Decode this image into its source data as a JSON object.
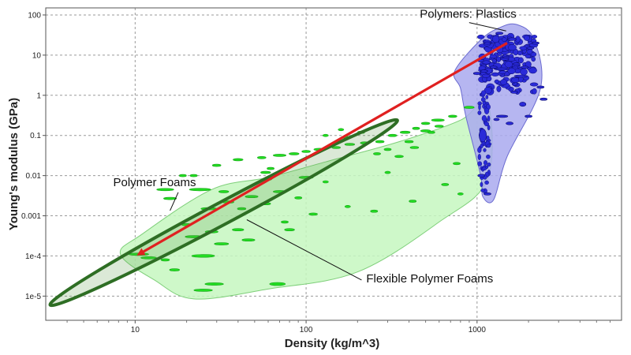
{
  "chart_data": {
    "type": "scatter",
    "title": "",
    "xlabel": "Density (kg/m^3)",
    "ylabel": "Young's modulus (GPa)",
    "x_scale": "log",
    "y_scale": "log",
    "xlim": [
      3,
      7000
    ],
    "ylim": [
      2.5e-06,
      150
    ],
    "grid": true,
    "x_ticks": [
      {
        "value": 10,
        "label": "10"
      },
      {
        "value": 100,
        "label": "100"
      },
      {
        "value": 1000,
        "label": "1000"
      }
    ],
    "y_ticks": [
      {
        "value": 1e-05,
        "label": "1e-5"
      },
      {
        "value": 0.0001,
        "label": "1e-4"
      },
      {
        "value": 0.001,
        "label": "0.001"
      },
      {
        "value": 0.01,
        "label": "0.01"
      },
      {
        "value": 0.1,
        "label": "0.1"
      },
      {
        "value": 1,
        "label": "1"
      },
      {
        "value": 10,
        "label": "10"
      },
      {
        "value": 100,
        "label": "100"
      }
    ],
    "colors": {
      "foam_envelope": "#c5f7c0",
      "foam_point": "#22dd22",
      "plastics_envelope": "#a9a9ee",
      "plastics_point": "#2a2ad8",
      "flexible_envelope": "#2e6e24",
      "arrow": "#e02020"
    },
    "envelopes": [
      {
        "name": "Polymer Foams",
        "color": "#c5f7c0",
        "points": [
          [
            8.2,
            0.00011
          ],
          [
            11,
            0.00035
          ],
          [
            28,
            0.0045
          ],
          [
            60,
            0.009
          ],
          [
            130,
            0.022
          ],
          [
            350,
            0.07
          ],
          [
            800,
            0.24
          ],
          [
            1150,
            0.7
          ],
          [
            1150,
            0.008
          ],
          [
            600,
            0.0007
          ],
          [
            200,
            4e-05
          ],
          [
            60,
            1.5e-05
          ],
          [
            22,
            8.5e-06
          ],
          [
            13,
            2.5e-05
          ]
        ]
      },
      {
        "name": "Polymers: Plastics",
        "color": "#a9a9ee",
        "points": [
          [
            740,
            4
          ],
          [
            1050,
            24
          ],
          [
            1350,
            48
          ],
          [
            1700,
            58
          ],
          [
            2150,
            25
          ],
          [
            2350,
            1.5
          ],
          [
            1500,
            0.03
          ],
          [
            1250,
            0.0025
          ],
          [
            1080,
            0.003
          ],
          [
            1050,
            0.01
          ],
          [
            860,
            0.3
          ],
          [
            800,
            1.5
          ]
        ]
      }
    ],
    "flexible_envelope": {
      "name": "Flexible Polymer Foams",
      "center": [
        33,
        0.0012
      ],
      "log_semi_major": 1.15,
      "log_semi_minor": 0.27,
      "angle_deg": -28
    },
    "trend_arrow": {
      "from": [
        1500,
        20
      ],
      "to": [
        10.5,
        0.00011
      ]
    },
    "series": [
      {
        "name": "Polymer Foams",
        "color": "#22dd22",
        "points": [
          [
            10.5,
            0.00011,
            1.4,
            0.18
          ],
          [
            12,
            9e-05,
            1.1,
            0.14
          ],
          [
            25,
            0.0001,
            1.6,
            0.2
          ],
          [
            17,
            4.5e-05,
            0.7,
            0.09
          ],
          [
            25,
            1.4e-05,
            1.3,
            0.14
          ],
          [
            29,
            2e-05,
            1.3,
            0.17
          ],
          [
            68,
            2e-05,
            1.1,
            0.22
          ],
          [
            22,
            0.0003,
            1.2,
            0.14
          ],
          [
            32,
            0.0002,
            1.0,
            0.12
          ],
          [
            46,
            0.00025,
            0.9,
            0.12
          ],
          [
            15,
            8e-05,
            0.6,
            0.06
          ],
          [
            28,
            0.0004,
            0.9,
            0.1
          ],
          [
            40,
            0.00045,
            0.8,
            0.09
          ],
          [
            20,
            0.0006,
            0.7,
            0.08
          ],
          [
            27,
            0.0015,
            1.1,
            0.12
          ],
          [
            35,
            0.0022,
            0.8,
            0.1
          ],
          [
            48,
            0.003,
            0.9,
            0.1
          ],
          [
            58,
            0.002,
            0.7,
            0.08
          ],
          [
            70,
            0.004,
            0.9,
            0.12
          ],
          [
            16,
            0.0027,
            0.9,
            0.1
          ],
          [
            15,
            0.0045,
            1.2,
            0.14
          ],
          [
            24,
            0.0045,
            1.5,
            0.17
          ],
          [
            33,
            0.004,
            0.7,
            0.08
          ],
          [
            100,
            0.009,
            1.0,
            0.12
          ],
          [
            60,
            0.0082,
            0.5,
            0.12
          ],
          [
            58,
            0.012,
            0.7,
            0.09
          ],
          [
            42,
            0.0015,
            0.6,
            0.07
          ],
          [
            22,
            0.01,
            0.5,
            0.06
          ],
          [
            62,
            0.015,
            0.5,
            0.15
          ],
          [
            30,
            0.018,
            0.6,
            0.06
          ],
          [
            40,
            0.025,
            0.7,
            0.07
          ],
          [
            55,
            0.028,
            0.6,
            0.07
          ],
          [
            70,
            0.032,
            0.9,
            0.09
          ],
          [
            85,
            0.035,
            0.7,
            0.08
          ],
          [
            100,
            0.04,
            0.6,
            0.07
          ],
          [
            120,
            0.045,
            0.8,
            0.09
          ],
          [
            150,
            0.05,
            0.6,
            0.07
          ],
          [
            180,
            0.06,
            0.7,
            0.08
          ],
          [
            220,
            0.065,
            0.6,
            0.07
          ],
          [
            270,
            0.07,
            0.6,
            0.07
          ],
          [
            320,
            0.1,
            0.6,
            0.07
          ],
          [
            380,
            0.12,
            0.7,
            0.08
          ],
          [
            440,
            0.15,
            0.5,
            0.06
          ],
          [
            500,
            0.2,
            0.6,
            0.07
          ],
          [
            130,
            0.1,
            0.4,
            0.05
          ],
          [
            160,
            0.14,
            0.4,
            0.05
          ],
          [
            170,
            0.09,
            0.6,
            0.06
          ],
          [
            210,
            0.12,
            0.5,
            0.06
          ],
          [
            300,
            0.045,
            0.5,
            0.05
          ],
          [
            260,
            0.035,
            0.5,
            0.06
          ],
          [
            350,
            0.03,
            0.6,
            0.14
          ],
          [
            400,
            0.07,
            0.6,
            0.16
          ],
          [
            430,
            0.05,
            0.6,
            0.14
          ],
          [
            500,
            0.13,
            0.7,
            0.1
          ],
          [
            540,
            0.12,
            0.5,
            0.06
          ],
          [
            600,
            0.17,
            0.6,
            0.14
          ],
          [
            590,
            0.24,
            0.9,
            0.16
          ],
          [
            720,
            0.3,
            0.6,
            0.07
          ],
          [
            900,
            0.5,
            0.7,
            0.08
          ],
          [
            760,
            0.02,
            0.5,
            0.06
          ],
          [
            650,
            0.006,
            0.5,
            0.06
          ],
          [
            800,
            0.0035,
            0.4,
            0.05
          ],
          [
            420,
            0.0023,
            0.5,
            0.05
          ],
          [
            250,
            0.0013,
            0.5,
            0.06
          ],
          [
            175,
            0.0017,
            0.4,
            0.05
          ],
          [
            110,
            0.0011,
            0.6,
            0.07
          ],
          [
            80,
            0.00045,
            0.7,
            0.08
          ],
          [
            75,
            0.0007,
            0.5,
            0.06
          ],
          [
            90,
            0.0028,
            0.5,
            0.06
          ],
          [
            130,
            0.007,
            0.4,
            0.05
          ],
          [
            300,
            0.012,
            0.4,
            0.05
          ],
          [
            19,
            0.01,
            0.5,
            0.06
          ]
        ]
      },
      {
        "name": "Polymers: Plastics",
        "color": "#2a2ad8",
        "points": [
          [
            1080,
            0.1,
            0.5,
            0.9
          ],
          [
            1060,
            0.01,
            0.5,
            0.2
          ],
          [
            1300,
            0.25,
            0.4,
            0.15
          ],
          [
            1400,
            0.3,
            0.8,
            0.06
          ],
          [
            1550,
            0.2,
            0.5,
            0.2
          ],
          [
            1650,
            1.2,
            0.5,
            0.12
          ],
          [
            1850,
            0.6,
            0.45,
            0.3
          ],
          [
            2000,
            0.3,
            0.5,
            0.1
          ],
          [
            2350,
            1.6,
            0.5,
            0.15
          ],
          [
            1150,
            0.0035,
            0.5,
            0.08
          ],
          [
            1100,
            4,
            0.5,
            0.12
          ],
          [
            1250,
            5,
            0.5,
            0.12
          ],
          [
            1450,
            8,
            0.6,
            0.12
          ],
          [
            1700,
            6,
            0.5,
            0.12
          ],
          [
            1900,
            5,
            0.5,
            0.12
          ],
          [
            2050,
            15,
            0.5,
            0.1
          ],
          [
            1600,
            25,
            0.6,
            0.2
          ],
          [
            1350,
            35,
            0.5,
            0.12
          ],
          [
            1150,
            20,
            0.5,
            0.12
          ],
          [
            1000,
            3.5,
            0.5,
            0.08
          ],
          [
            1400,
            4.5,
            1.0,
            0.12
          ],
          [
            1800,
            3,
            0.9,
            0.12
          ],
          [
            2200,
            20,
            0.5,
            0.1
          ],
          [
            2450,
            0.8,
            0.5,
            0.12
          ]
        ]
      }
    ],
    "annotations": [
      {
        "name": "polymers-plastics",
        "text": "Polymers: Plastics",
        "anchor": [
          1480,
          40
        ],
        "label_at": [
          1700,
          85
        ],
        "anchor_label": "left"
      },
      {
        "name": "polymer-foams",
        "text": "Polymer Foams",
        "anchor": [
          16,
          0.00135
        ],
        "label_at": [
          13,
          0.0055
        ],
        "anchor_label": "middle"
      },
      {
        "name": "flexible-foams",
        "text": "Flexible Polymer Foams",
        "anchor": [
          45,
          0.0008
        ],
        "label_at": [
          225,
          2.2e-05
        ],
        "anchor_label": "right"
      }
    ]
  }
}
